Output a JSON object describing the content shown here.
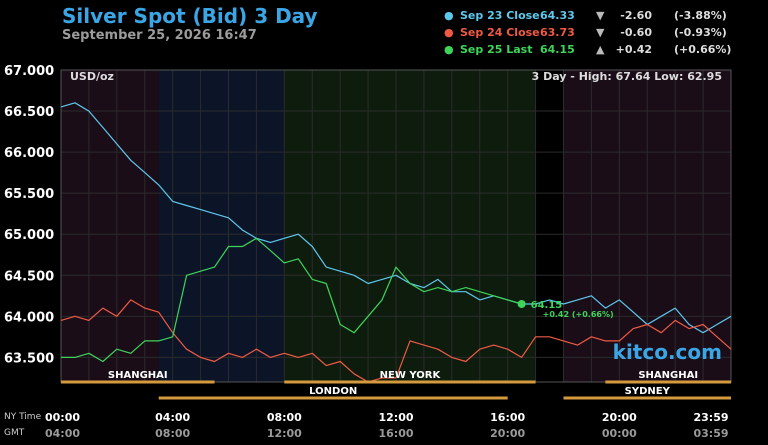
{
  "title": "Silver Spot (Bid) 3 Day",
  "subtitle": "September 25, 2026 16:47",
  "legend": [
    {
      "name": "Sep 23 Close",
      "value": "64.33",
      "arrow": "▼",
      "change": "-2.60",
      "pct": "(-3.88%)",
      "color": "#5ec8ec"
    },
    {
      "name": "Sep 24 Close",
      "value": "63.73",
      "arrow": "▼",
      "change": "-0.60",
      "pct": "(-0.93%)",
      "color": "#f05a45"
    },
    {
      "name": "Sep 25 Last",
      "value": "64.15",
      "arrow": "▲",
      "change": "+0.42",
      "pct": "(+0.66%)",
      "color": "#3ed45a"
    }
  ],
  "unit_label": "USD/oz",
  "range_label": "3 Day - High: 67.64  Low: 62.95",
  "watermark": "kitco.com",
  "last_label": "64.15",
  "last_change_label": "+0.42 (+0.66%)",
  "timezone_labels": {
    "primary": "NY Time",
    "secondary": "GMT"
  },
  "sessions": [
    {
      "name": "SHANGHAI",
      "start": 0,
      "end": 5.5,
      "row": 1
    },
    {
      "name": "LONDON",
      "start": 3.5,
      "end": 16,
      "row": 2
    },
    {
      "name": "NEW YORK",
      "start": 8,
      "end": 17,
      "row": 1
    },
    {
      "name": "SHANGHAI",
      "start": 19.5,
      "end": 24,
      "row": 1
    },
    {
      "name": "SYDNEY",
      "start": 18,
      "end": 24,
      "row": 2
    }
  ],
  "chart_data": {
    "type": "line",
    "ylim": [
      63.2,
      67.0
    ],
    "xlim": [
      0,
      24
    ],
    "yticks": [
      "67.000",
      "66.500",
      "66.000",
      "65.500",
      "65.000",
      "64.500",
      "64.000",
      "63.500"
    ],
    "ytick_values": [
      67.0,
      66.5,
      66.0,
      65.5,
      65.0,
      64.5,
      64.0,
      63.5
    ],
    "xticks_ny": [
      "00:00",
      "04:00",
      "08:00",
      "12:00",
      "16:00",
      "20:00",
      "23:59"
    ],
    "xticks_gmt": [
      "04:00",
      "08:00",
      "12:00",
      "16:00",
      "20:00",
      "00:00",
      "03:59"
    ],
    "xtick_hours": [
      0,
      4,
      8,
      12,
      16,
      20,
      24
    ],
    "series": [
      {
        "name": "Sep 23 Close",
        "color": "#5ec8ec",
        "x": [
          0,
          0.5,
          1,
          1.5,
          2,
          2.5,
          3,
          3.5,
          4,
          4.5,
          5,
          5.5,
          6,
          6.5,
          7,
          7.5,
          8,
          8.5,
          9,
          9.5,
          10,
          10.5,
          11,
          11.5,
          12,
          12.5,
          13,
          13.5,
          14,
          14.5,
          15,
          15.5,
          16,
          16.5,
          17,
          17.5,
          18,
          18.5,
          19,
          19.5,
          20,
          20.5,
          21,
          21.5,
          22,
          22.5,
          23,
          23.5,
          24
        ],
        "y": [
          66.55,
          66.6,
          66.5,
          66.3,
          66.1,
          65.9,
          65.75,
          65.6,
          65.4,
          65.35,
          65.3,
          65.25,
          65.2,
          65.05,
          64.95,
          64.9,
          64.95,
          65.0,
          64.85,
          64.6,
          64.55,
          64.5,
          64.4,
          64.45,
          64.5,
          64.4,
          64.35,
          64.45,
          64.3,
          64.3,
          64.2,
          64.25,
          64.2,
          64.15,
          64.15,
          64.2,
          64.15,
          64.2,
          64.25,
          64.1,
          64.2,
          64.05,
          63.9,
          64.0,
          64.1,
          63.9,
          63.8,
          63.9,
          64.0
        ]
      },
      {
        "name": "Sep 24 Close",
        "color": "#f05a45",
        "x": [
          0,
          0.5,
          1,
          1.5,
          2,
          2.5,
          3,
          3.5,
          4,
          4.5,
          5,
          5.5,
          6,
          6.5,
          7,
          7.5,
          8,
          8.5,
          9,
          9.5,
          10,
          10.5,
          11,
          11.5,
          12,
          12.5,
          13,
          13.5,
          14,
          14.5,
          15,
          15.5,
          16,
          16.5,
          17,
          17.5,
          18,
          18.5,
          19,
          19.5,
          20,
          20.5,
          21,
          21.5,
          22,
          22.5,
          23,
          23.5,
          24
        ],
        "y": [
          63.95,
          64.0,
          63.95,
          64.1,
          64.0,
          64.2,
          64.1,
          64.05,
          63.8,
          63.6,
          63.5,
          63.45,
          63.55,
          63.5,
          63.6,
          63.5,
          63.55,
          63.5,
          63.55,
          63.4,
          63.45,
          63.3,
          63.2,
          63.25,
          63.25,
          63.7,
          63.65,
          63.6,
          63.5,
          63.45,
          63.6,
          63.65,
          63.6,
          63.5,
          63.75,
          63.75,
          63.7,
          63.65,
          63.75,
          63.7,
          63.7,
          63.85,
          63.9,
          63.8,
          63.95,
          63.85,
          63.9,
          63.75,
          63.6
        ]
      },
      {
        "name": "Sep 25 Last",
        "color": "#3ed45a",
        "x": [
          0,
          0.5,
          1,
          1.5,
          2,
          2.5,
          3,
          3.5,
          4,
          4.5,
          5,
          5.5,
          6,
          6.5,
          7,
          7.5,
          8,
          8.5,
          9,
          9.5,
          10,
          10.5,
          11,
          11.5,
          12,
          12.5,
          13,
          13.5,
          14,
          14.5,
          15,
          15.5,
          16,
          16.5
        ],
        "y": [
          63.5,
          63.5,
          63.55,
          63.45,
          63.6,
          63.55,
          63.7,
          63.7,
          63.75,
          64.5,
          64.55,
          64.6,
          64.85,
          64.85,
          64.95,
          64.8,
          64.65,
          64.7,
          64.45,
          64.4,
          63.9,
          63.8,
          64.0,
          64.2,
          64.6,
          64.4,
          64.3,
          64.35,
          64.3,
          64.35,
          64.3,
          64.25,
          64.2,
          64.15
        ]
      }
    ]
  }
}
